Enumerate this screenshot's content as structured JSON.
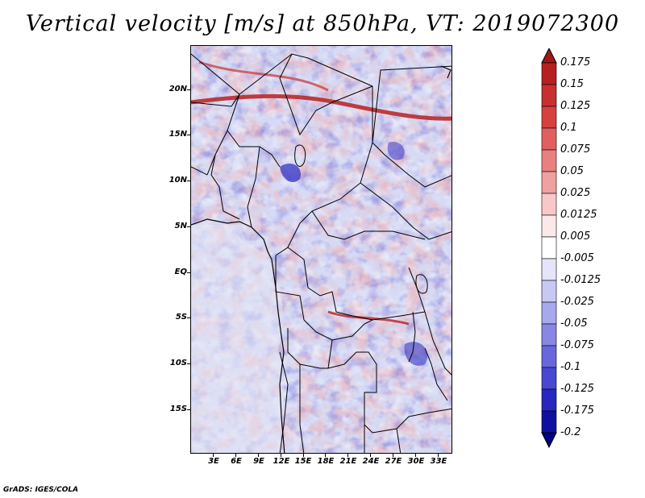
{
  "title": "Vertical velocity [m/s] at 850hPa, VT: 2019072300",
  "footer": "GrADS: IGES/COLA",
  "map": {
    "lon_range": [
      0,
      35
    ],
    "lat_range": [
      -20,
      25
    ],
    "lat_labels": [
      "20N",
      "15N",
      "10N",
      "5N",
      "EQ",
      "5S",
      "10S",
      "15S"
    ],
    "lat_values": [
      20,
      15,
      10,
      5,
      0,
      -5,
      -10,
      -15
    ],
    "lon_labels": [
      "3E",
      "6E",
      "9E",
      "12E",
      "15E",
      "18E",
      "21E",
      "24E",
      "27E",
      "30E",
      "33E"
    ],
    "lon_values": [
      3,
      6,
      9,
      12,
      15,
      18,
      21,
      24,
      27,
      30,
      33
    ]
  },
  "colorbar": {
    "labels": [
      "0.175",
      "0.15",
      "0.125",
      "0.1",
      "0.075",
      "0.05",
      "0.025",
      "0.0125",
      "0.005",
      "-0.005",
      "-0.0125",
      "-0.025",
      "-0.05",
      "-0.075",
      "-0.1",
      "-0.125",
      "-0.175",
      "-0.2"
    ],
    "colors": [
      "#a01818",
      "#b82020",
      "#c83030",
      "#d84040",
      "#e06060",
      "#e88080",
      "#f0a0a0",
      "#f8c8c8",
      "#fce8e8",
      "#ffffff",
      "#e4e4fa",
      "#c8c8f4",
      "#a8a8ee",
      "#8888e4",
      "#6868dc",
      "#4848d0",
      "#2828c0",
      "#1010a0",
      "#000080"
    ],
    "top_color": "#a01818",
    "bottom_color": "#000080"
  }
}
